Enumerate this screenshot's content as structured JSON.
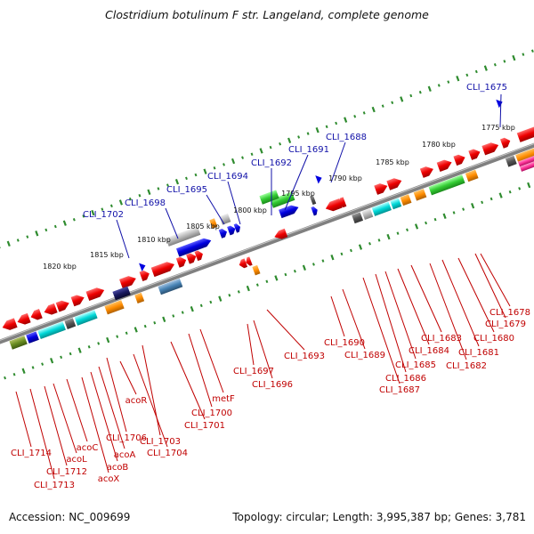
{
  "title": "Clostridium botulinum F str. Langeland, complete genome",
  "footer": {
    "accession": "Accession: NC_009699",
    "summary": "Topology: circular; Length: 3,995,387 bp; Genes: 3,781"
  },
  "ticks": [
    "1775 kbp",
    "1780 kbp",
    "1785 kbp",
    "1790 kbp",
    "1795 kbp",
    "1800 kbp",
    "1805 kbp",
    "1810 kbp",
    "1815 kbp",
    "1820 kbp"
  ],
  "upper_labels": [
    "CLI_1675",
    "CLI_1688",
    "CLI_1691",
    "CLI_1692",
    "CLI_1694",
    "CLI_1695",
    "CLI_1698",
    "CLI_1702"
  ],
  "lower_labels": [
    "CLI_1678",
    "CLI_1679",
    "CLI_1680",
    "CLI_1681",
    "CLI_1682",
    "CLI_1683",
    "CLI_1684",
    "CLI_1685",
    "CLI_1686",
    "CLI_1687",
    "CLI_1689",
    "CLI_1690",
    "CLI_1693",
    "CLI_1696",
    "CLI_1697",
    "metF",
    "CLI_1700",
    "CLI_1701",
    "CLI_1703",
    "CLI_1704",
    "acoR",
    "CLI_1706",
    "acoA",
    "acoB",
    "acoX",
    "acoC",
    "acoL",
    "CLI_1712",
    "CLI_1713",
    "CLI_1714"
  ],
  "colors": {
    "ticks_green": "#2e8b2e",
    "backbone": "#808080",
    "gene_red": "#e00000",
    "gene_blue": "#0000e0",
    "gene_cyan": "#00d8d8",
    "gene_gray": "#b8b8b8",
    "gene_orange": "#ff8c00",
    "gene_green": "#33cc33",
    "label_blue": "#1010a8",
    "label_red": "#c00000",
    "magenta": "#ff3399"
  }
}
